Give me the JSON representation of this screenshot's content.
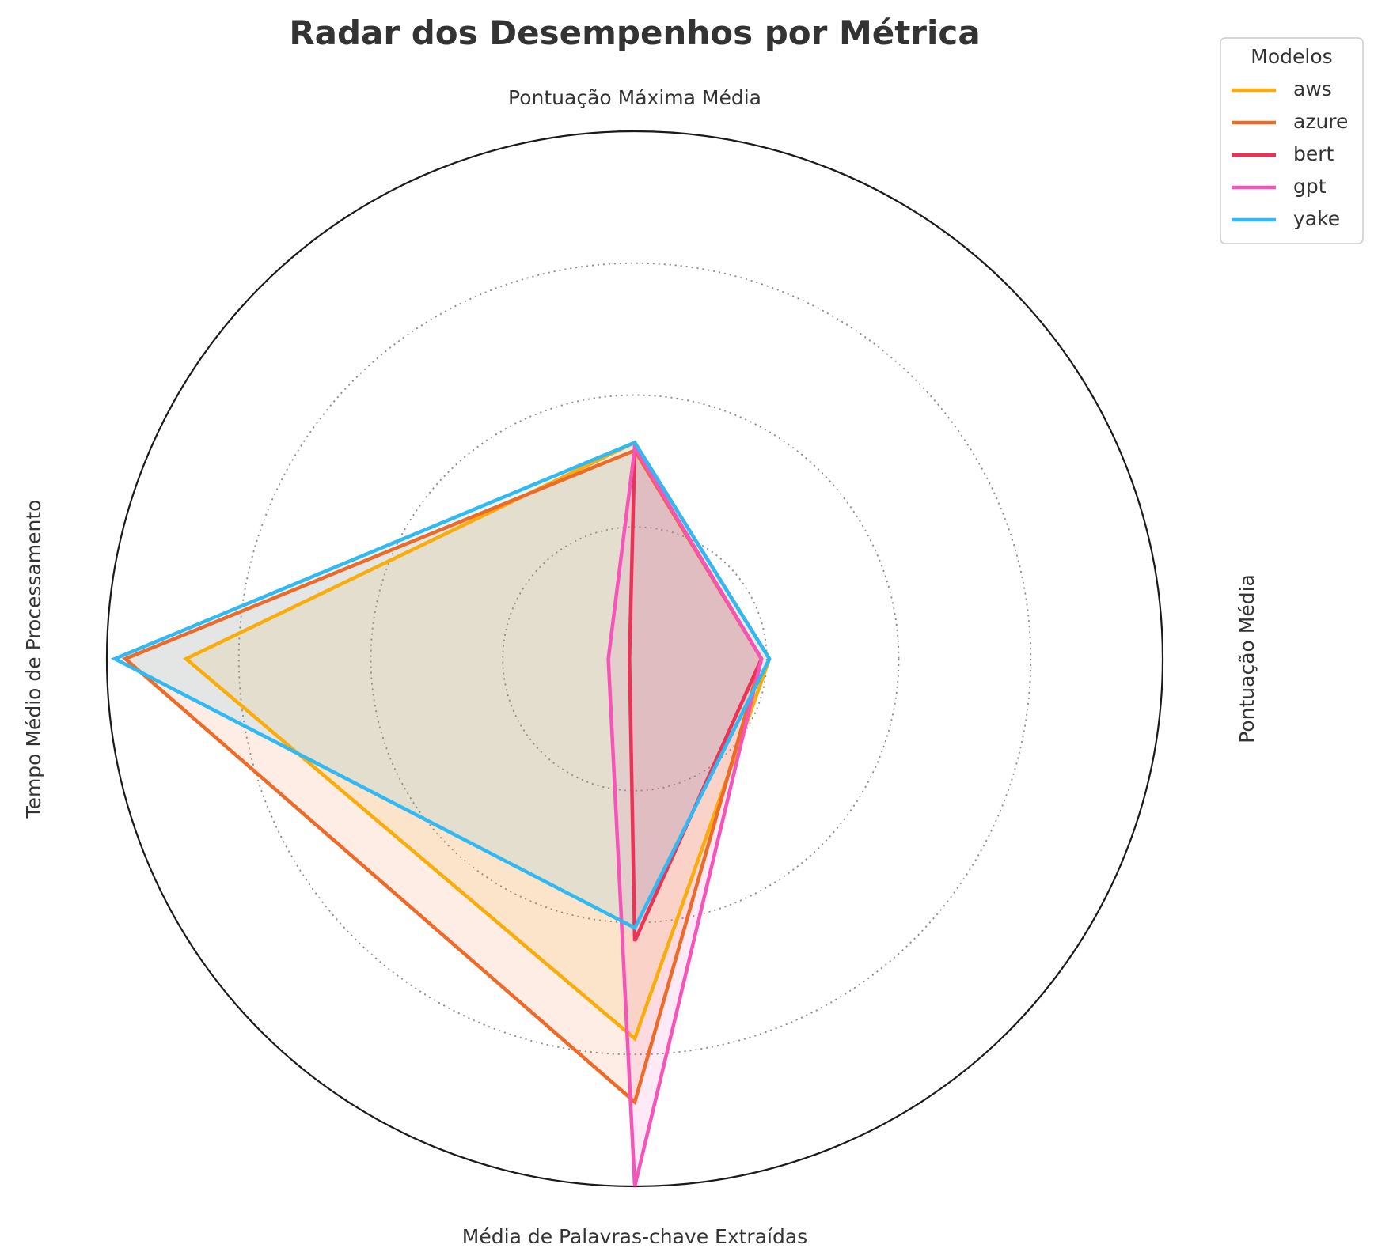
{
  "chart_data": {
    "type": "radar",
    "title": "Radar dos Desempenhos por Métrica",
    "axes": [
      "Pontuação Média",
      "Pontuação Máxima Média",
      "Tempo Médio de Processamento",
      "Média de Palavras-chave Extraídas"
    ],
    "rlim": [
      0,
      1
    ],
    "rticks": [
      0.25,
      0.5,
      0.75,
      1.0
    ],
    "grid": true,
    "legend": {
      "title": "Modelos",
      "placement": "top-right"
    },
    "series": [
      {
        "name": "aws",
        "color": "#F9AC0A",
        "values": [
          0.255,
          0.41,
          0.85,
          0.72
        ]
      },
      {
        "name": "azure",
        "color": "#EE6A28",
        "values": [
          0.24,
          0.395,
          0.965,
          0.84
        ]
      },
      {
        "name": "bert",
        "color": "#EC3355",
        "values": [
          0.24,
          0.4,
          0.01,
          0.535
        ]
      },
      {
        "name": "gpt",
        "color": "#F654B9",
        "values": [
          0.24,
          0.4,
          0.05,
          1.0
        ]
      },
      {
        "name": "yake",
        "color": "#30B9F2",
        "values": [
          0.255,
          0.41,
          0.985,
          0.51
        ]
      }
    ]
  }
}
